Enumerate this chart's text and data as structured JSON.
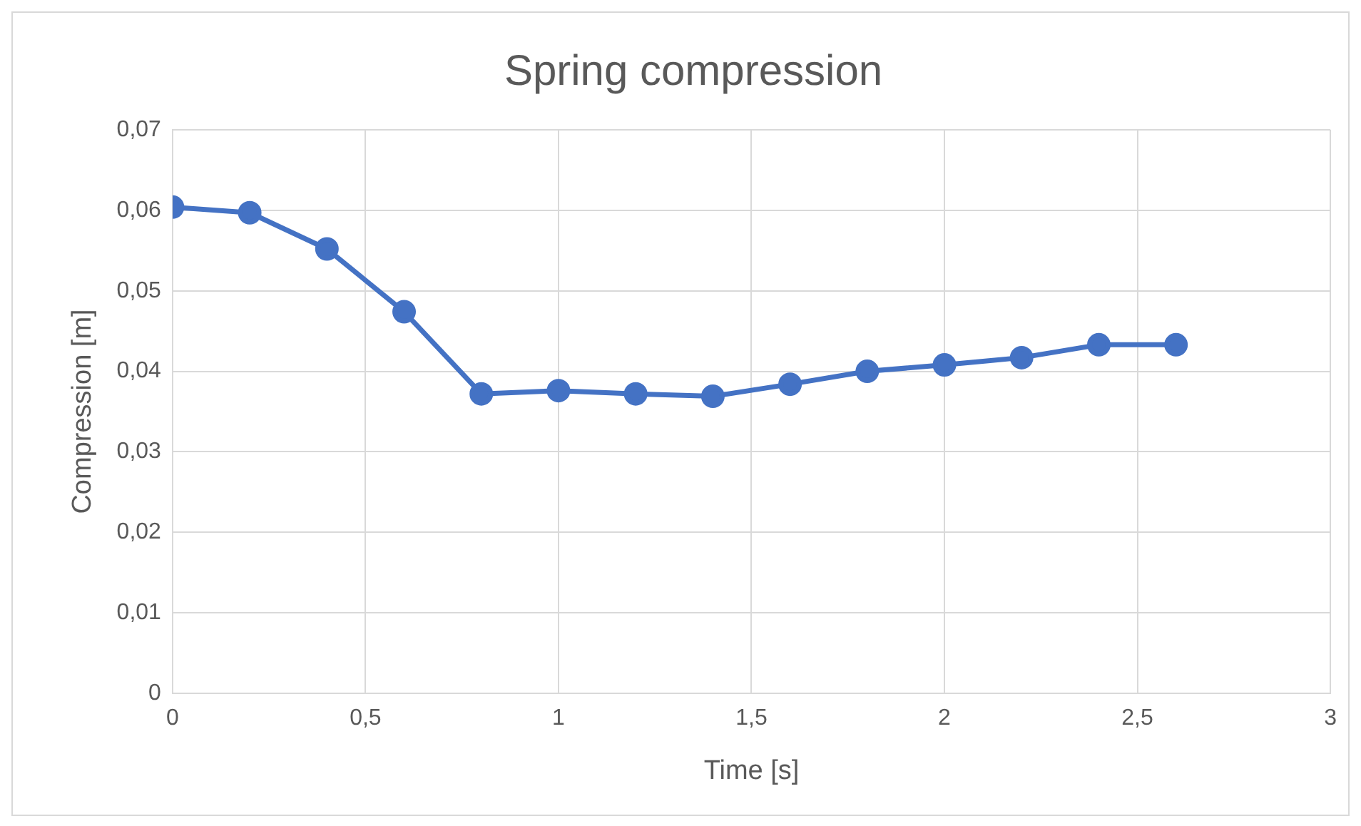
{
  "chart_data": {
    "type": "line",
    "title": "Spring compression",
    "xlabel": "Time [s]",
    "ylabel": "Compression [m]",
    "x": [
      0,
      0.2,
      0.4,
      0.6,
      0.8,
      1,
      1.2,
      1.4,
      1.6,
      1.8,
      2,
      2.2,
      2.4,
      2.6
    ],
    "series": [
      {
        "color": "#4472c4",
        "values": [
          0.0604,
          0.0597,
          0.0552,
          0.0474,
          0.0372,
          0.0376,
          0.0372,
          0.0369,
          0.0384,
          0.04,
          0.0408,
          0.0417,
          0.0433,
          0.0433
        ]
      }
    ],
    "xlim": [
      0,
      3
    ],
    "xticks": [
      0,
      {
        "value": 0.5,
        "label": "0,5"
      },
      1,
      {
        "value": 1.5,
        "label": "1,5"
      },
      2,
      {
        "value": 2.5,
        "label": "2,5"
      },
      3
    ],
    "ylim": [
      0,
      0.07
    ],
    "yticks": [
      0,
      {
        "value": 0.01,
        "label": "0,01"
      },
      {
        "value": 0.02,
        "label": "0,02"
      },
      {
        "value": 0.03,
        "label": "0,03"
      },
      {
        "value": 0.04,
        "label": "0,04"
      },
      {
        "value": 0.05,
        "label": "0,05"
      },
      {
        "value": 0.06,
        "label": "0,06"
      },
      {
        "value": 0.07,
        "label": "0,07"
      }
    ],
    "grid": true,
    "legend": false,
    "marker": "circle",
    "line_style": "solid"
  }
}
